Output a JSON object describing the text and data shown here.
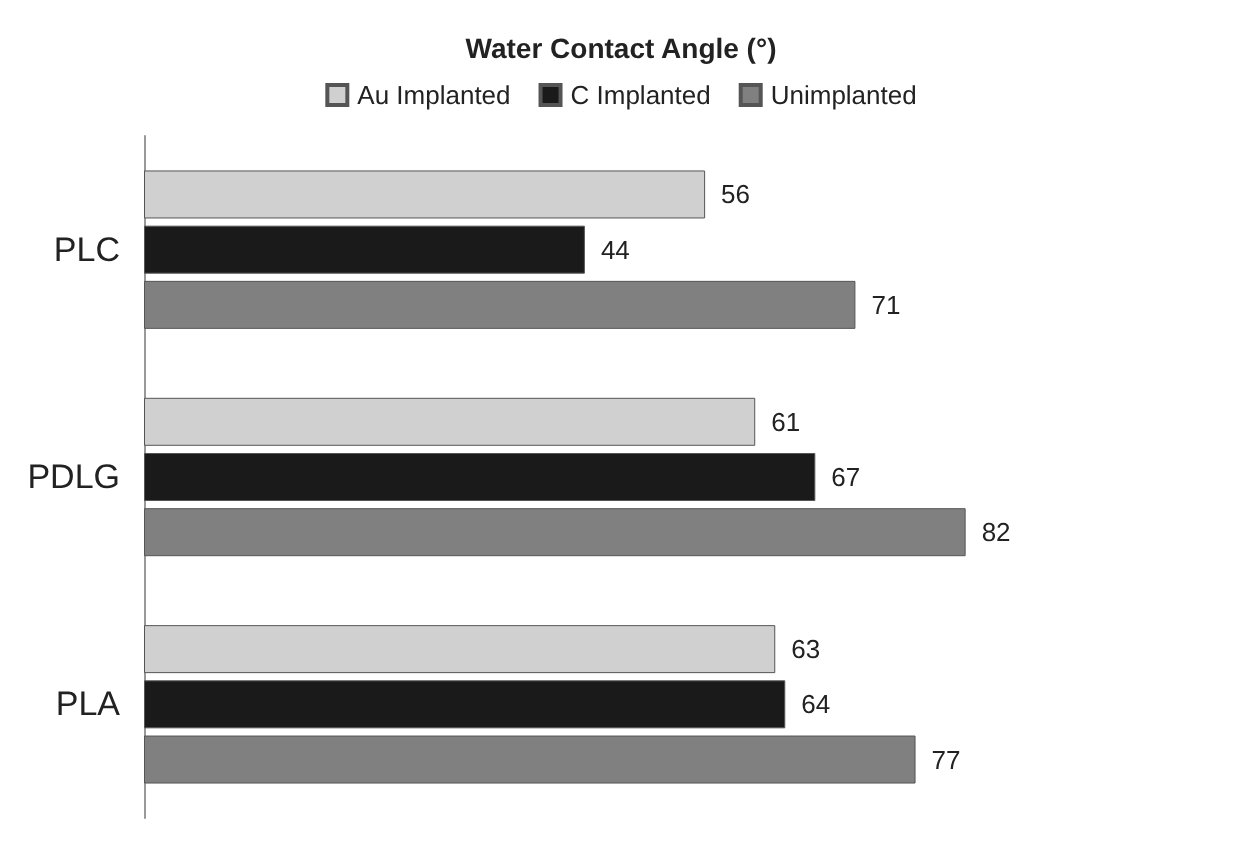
{
  "chart_data": {
    "type": "bar",
    "orientation": "horizontal",
    "title": "Water Contact Angle (°)",
    "categories": [
      "PLC",
      "PDLG",
      "PLA"
    ],
    "series": [
      {
        "name": "Au Implanted",
        "color": "#d0d0d0",
        "values": [
          56,
          61,
          63
        ]
      },
      {
        "name": "C Implanted",
        "color": "#1a1a1a",
        "values": [
          44,
          67,
          64
        ]
      },
      {
        "name": "Unimplanted",
        "color": "#808080",
        "values": [
          71,
          82,
          77
        ]
      }
    ],
    "data_labels": true,
    "legend": "top"
  }
}
